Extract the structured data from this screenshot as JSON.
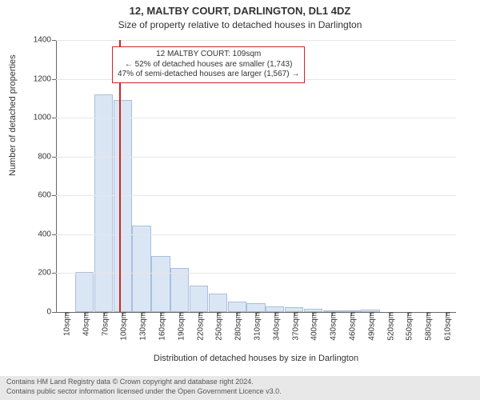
{
  "title": "12, MALTBY COURT, DARLINGTON, DL1 4DZ",
  "subtitle": "Size of property relative to detached houses in Darlington",
  "chart": {
    "type": "histogram",
    "background_color": "#ffffff",
    "grid_color": "#e6e6e6",
    "axis_color": "#666666",
    "bar_fill": "#dbe6f5",
    "bar_border": "#a9bfde",
    "marker_color": "#d02424",
    "font_size_title": 13,
    "font_size_subtitle": 12,
    "font_size_axis_label": 11,
    "font_size_tick": 10,
    "ylim": [
      0,
      1400
    ],
    "ytick_step": 200,
    "ylabel": "Number of detached properties",
    "xlabel": "Distribution of detached houses by size in Darlington",
    "xticks": [
      "10sqm",
      "40sqm",
      "70sqm",
      "100sqm",
      "130sqm",
      "160sqm",
      "190sqm",
      "220sqm",
      "250sqm",
      "280sqm",
      "310sqm",
      "340sqm",
      "370sqm",
      "400sqm",
      "430sqm",
      "460sqm",
      "490sqm",
      "520sqm",
      "550sqm",
      "580sqm",
      "610sqm"
    ],
    "bar_values": [
      0,
      205,
      1120,
      1090,
      445,
      290,
      225,
      135,
      95,
      55,
      45,
      30,
      25,
      18,
      10,
      8,
      12,
      0,
      0,
      0,
      0
    ],
    "marker_x_value": 109,
    "x_range": [
      10,
      640
    ]
  },
  "annotation": {
    "border_color": "#d02424",
    "lines": [
      "12 MALTBY COURT: 109sqm",
      "← 52% of detached houses are smaller (1,743)",
      "47% of semi-detached houses are larger (1,567) →"
    ]
  },
  "footer": {
    "background_color": "#e8e8e8",
    "text_color": "#555555",
    "line1": "Contains HM Land Registry data © Crown copyright and database right 2024.",
    "line2": "Contains public sector information licensed under the Open Government Licence v3.0."
  }
}
